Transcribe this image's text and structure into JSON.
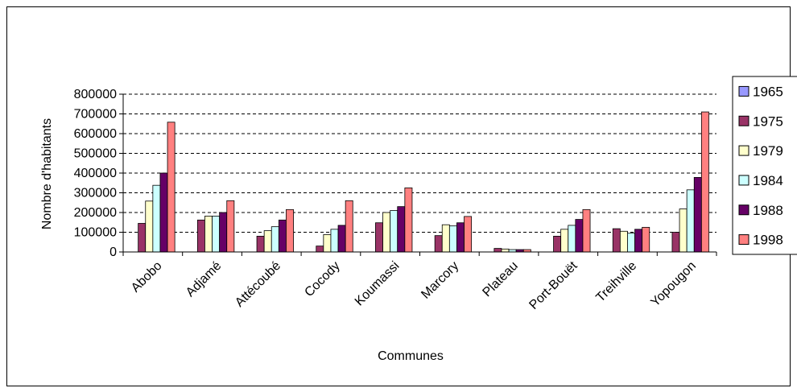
{
  "chart_data": {
    "type": "bar",
    "title": "",
    "xlabel": "Communes",
    "ylabel": "Nombre d'habitants",
    "ylim": [
      0,
      800000
    ],
    "yticks": [
      0,
      100000,
      200000,
      300000,
      400000,
      500000,
      600000,
      700000,
      800000
    ],
    "ytick_labels": [
      "0",
      "100000",
      "200000",
      "300000",
      "400000",
      "500000",
      "600000",
      "700000",
      "800000"
    ],
    "grid": true,
    "legend_position": "right",
    "categories": [
      "Abobo",
      "Adjamé",
      "Attécoubé",
      "Cocody",
      "Koumassi",
      "Marcory",
      "Plateau",
      "Port-Bouët",
      "Treihville",
      "Yopougon"
    ],
    "series": [
      {
        "name": "1965",
        "color": "#9999ff",
        "values": [
          0,
          0,
          0,
          0,
          0,
          0,
          0,
          0,
          0,
          0
        ]
      },
      {
        "name": "1975",
        "color": "#993366",
        "values": [
          145000,
          162000,
          80000,
          30000,
          148000,
          83000,
          18000,
          80000,
          118000,
          100000
        ]
      },
      {
        "name": "1979",
        "color": "#ffffcc",
        "values": [
          258000,
          182000,
          108000,
          88000,
          200000,
          138000,
          15000,
          115000,
          105000,
          218000
        ]
      },
      {
        "name": "1984",
        "color": "#ccffff",
        "values": [
          338000,
          182000,
          128000,
          115000,
          210000,
          132000,
          12000,
          135000,
          95000,
          315000
        ]
      },
      {
        "name": "1988",
        "color": "#660066",
        "values": [
          400000,
          200000,
          162000,
          135000,
          230000,
          148000,
          12000,
          165000,
          115000,
          378000
        ]
      },
      {
        "name": "1998",
        "color": "#ff8080",
        "values": [
          658000,
          260000,
          215000,
          260000,
          325000,
          180000,
          12000,
          215000,
          125000,
          710000
        ]
      }
    ]
  }
}
